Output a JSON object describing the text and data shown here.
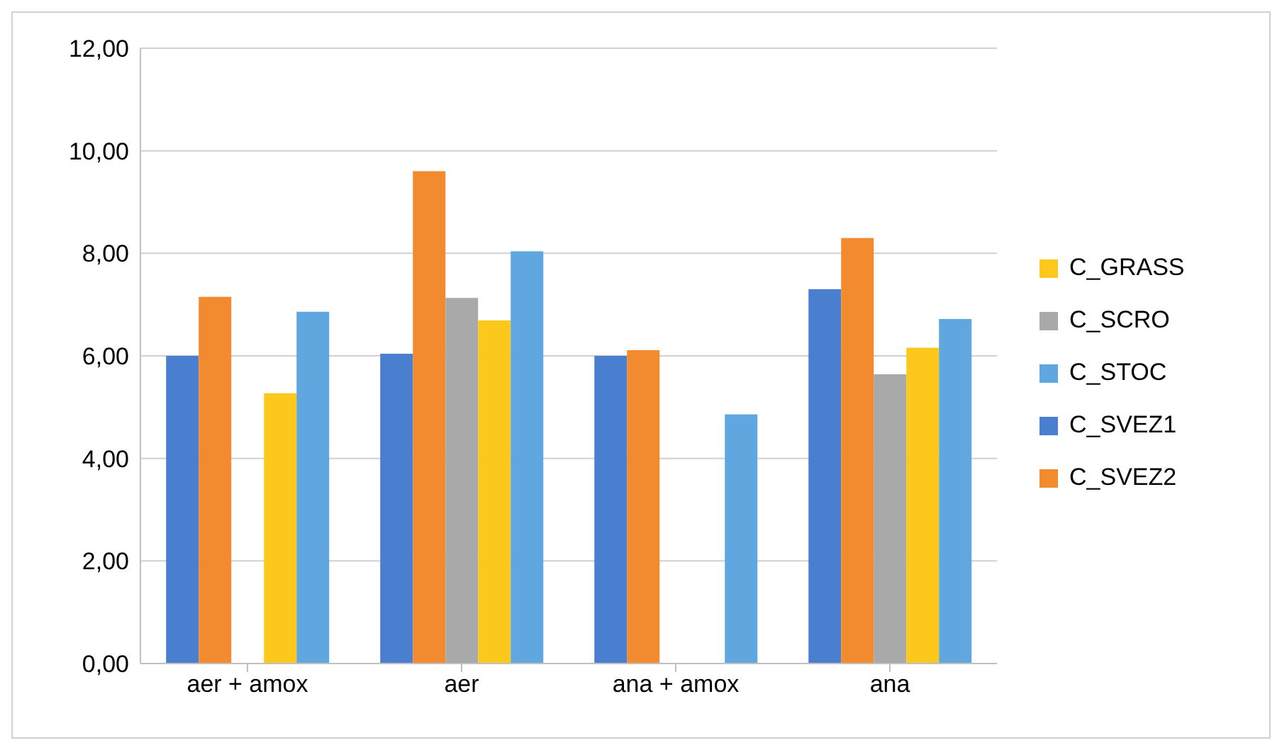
{
  "chart_data": {
    "type": "bar",
    "categories": [
      "aer + amox",
      "aer",
      "ana + amox",
      "ana"
    ],
    "series": [
      {
        "name": "C_SVEZ1",
        "color": "#4a7ecf",
        "values": [
          6.0,
          6.04,
          6.0,
          7.3
        ]
      },
      {
        "name": "C_SVEZ2",
        "color": "#f28a30",
        "values": [
          7.15,
          9.6,
          6.11,
          8.3
        ]
      },
      {
        "name": "C_SCRO",
        "color": "#a9a9a9",
        "values": [
          null,
          7.13,
          null,
          5.64
        ]
      },
      {
        "name": "C_GRASS",
        "color": "#fcc81c",
        "values": [
          5.27,
          6.69,
          null,
          6.16
        ]
      },
      {
        "name": "C_STOC",
        "color": "#5fa7de",
        "values": [
          6.86,
          8.04,
          4.86,
          6.72
        ]
      }
    ],
    "ylim": [
      0,
      12
    ],
    "yticks": [
      {
        "value": 0,
        "label": "0,00"
      },
      {
        "value": 2,
        "label": "2,00"
      },
      {
        "value": 4,
        "label": "4,00"
      },
      {
        "value": 6,
        "label": "6,00"
      },
      {
        "value": 8,
        "label": "8,00"
      },
      {
        "value": 10,
        "label": "10,00"
      },
      {
        "value": 12,
        "label": "12,00"
      }
    ],
    "grid": "y",
    "legend": "right"
  }
}
